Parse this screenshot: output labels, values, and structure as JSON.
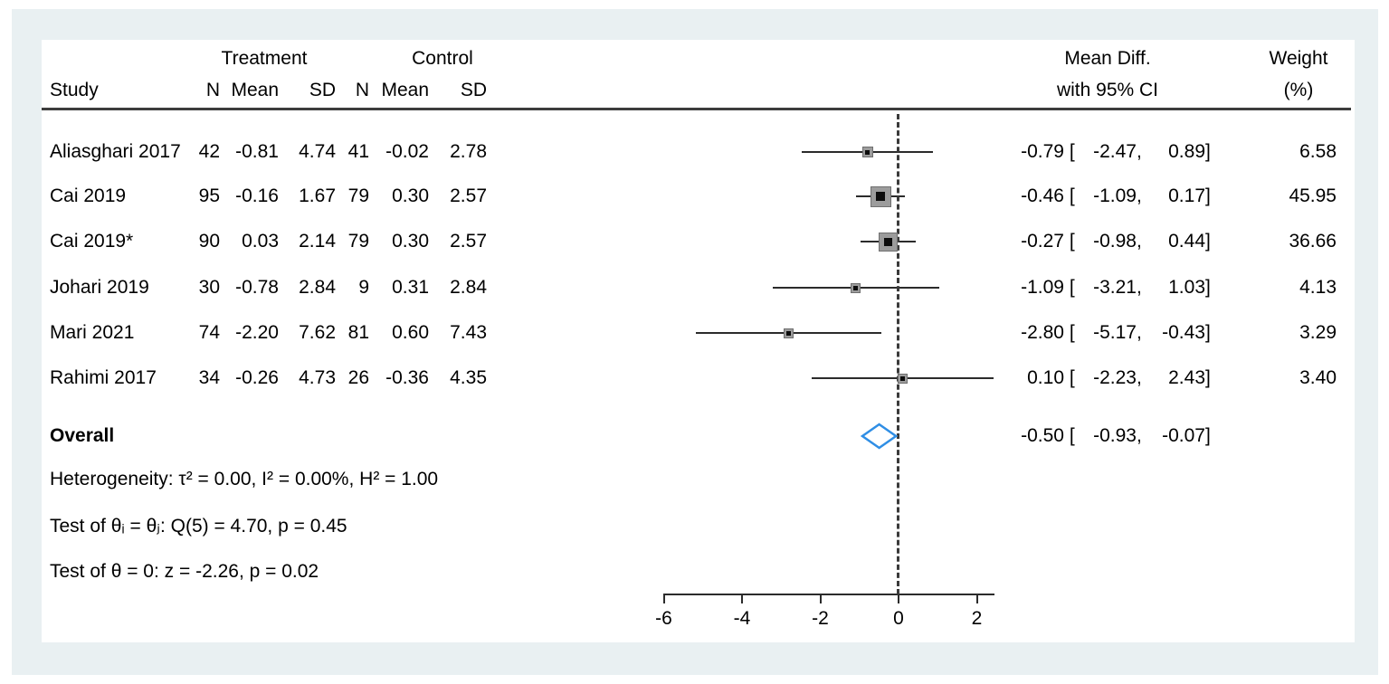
{
  "figure": {
    "frame_color": "#e9f0f2",
    "panel_color": "#ffffff",
    "text_color": "#000000"
  },
  "table": {
    "group_headers": {
      "treatment": "Treatment",
      "control": "Control"
    },
    "columns": {
      "study": "Study",
      "n": "N",
      "mean": "Mean",
      "sd": "SD"
    },
    "effect_header_line1": "Mean Diff.",
    "effect_header_line2": "with 95% CI",
    "weight_header_line1": "Weight",
    "weight_header_line2": "(%)"
  },
  "format": {
    "ci_open": " [",
    "ci_sep": ",",
    "ci_close": "]"
  },
  "chart_data": {
    "type": "scatter",
    "subtype": "forest-plot",
    "title": "",
    "xlabel": "",
    "x_ticks": [
      -6,
      -4,
      -2,
      0,
      2
    ],
    "x_axis_range": [
      -6,
      2.45
    ],
    "zero_line_x": 0,
    "grid": false,
    "marker_color": "#9c9c9c",
    "marker_core_color": "#0d0d0d",
    "diamond_color": "#2f8ee5",
    "studies": [
      {
        "label": "Aliasghari 2017",
        "t_n": "42",
        "t_mean": "-0.81",
        "t_sd": "4.74",
        "c_n": "41",
        "c_mean": "-0.02",
        "c_sd": "2.78",
        "md": "-0.79",
        "lo": "-2.47",
        "hi": "0.89",
        "weight": "6.58",
        "md_val": -0.79,
        "lo_val": -2.47,
        "hi_val": 0.89,
        "weight_val": 6.58
      },
      {
        "label": "Cai 2019",
        "t_n": "95",
        "t_mean": "-0.16",
        "t_sd": "1.67",
        "c_n": "79",
        "c_mean": "0.30",
        "c_sd": "2.57",
        "md": "-0.46",
        "lo": "-1.09",
        "hi": "0.17",
        "weight": "45.95",
        "md_val": -0.46,
        "lo_val": -1.09,
        "hi_val": 0.17,
        "weight_val": 45.95
      },
      {
        "label": "Cai 2019*",
        "t_n": "90",
        "t_mean": "0.03",
        "t_sd": "2.14",
        "c_n": "79",
        "c_mean": "0.30",
        "c_sd": "2.57",
        "md": "-0.27",
        "lo": "-0.98",
        "hi": "0.44",
        "weight": "36.66",
        "md_val": -0.27,
        "lo_val": -0.98,
        "hi_val": 0.44,
        "weight_val": 36.66
      },
      {
        "label": "Johari 2019",
        "t_n": "30",
        "t_mean": "-0.78",
        "t_sd": "2.84",
        "c_n": "9",
        "c_mean": "0.31",
        "c_sd": "2.84",
        "md": "-1.09",
        "lo": "-3.21",
        "hi": "1.03",
        "weight": "4.13",
        "md_val": -1.09,
        "lo_val": -3.21,
        "hi_val": 1.03,
        "weight_val": 4.13
      },
      {
        "label": "Mari 2021",
        "t_n": "74",
        "t_mean": "-2.20",
        "t_sd": "7.62",
        "c_n": "81",
        "c_mean": "0.60",
        "c_sd": "7.43",
        "md": "-2.80",
        "lo": "-5.17",
        "hi": "-0.43",
        "weight": "3.29",
        "md_val": -2.8,
        "lo_val": -5.17,
        "hi_val": -0.43,
        "weight_val": 3.29
      },
      {
        "label": "Rahimi 2017",
        "t_n": "34",
        "t_mean": "-0.26",
        "t_sd": "4.73",
        "c_n": "26",
        "c_mean": "-0.36",
        "c_sd": "4.35",
        "md": "0.10",
        "lo": "-2.23",
        "hi": "2.43",
        "weight": "3.40",
        "md_val": 0.1,
        "lo_val": -2.23,
        "hi_val": 2.43,
        "weight_val": 3.4
      }
    ],
    "overall": {
      "label": "Overall",
      "md": "-0.50",
      "lo": "-0.93",
      "hi": "-0.07",
      "md_val": -0.5,
      "lo_val": -0.93,
      "hi_val": -0.07
    },
    "notes": [
      "Heterogeneity: τ² = 0.00, I² = 0.00%, H² = 1.00",
      "Test of θᵢ = θⱼ: Q(5) = 4.70, p = 0.45",
      "Test of θ = 0: z = -2.26, p = 0.02"
    ]
  }
}
